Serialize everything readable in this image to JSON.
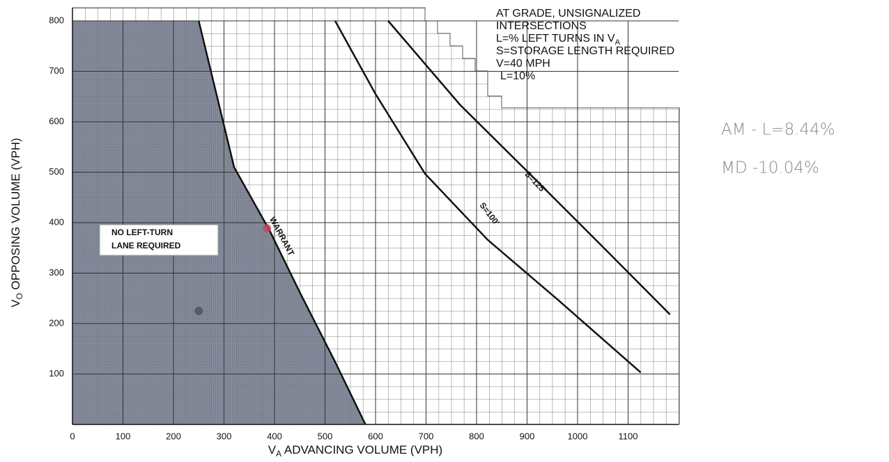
{
  "chart_data": {
    "type": "line",
    "info": [
      "AT GRADE, UNSIGNALIZED",
      "INTERSECTIONS",
      {
        "text": "L=% LEFT TURNS IN V",
        "sub": "A"
      },
      "S=STORAGE LENGTH REQUIRED",
      "V=40 MPH",
      "L=10%"
    ],
    "x_label": {
      "symbol": "V",
      "sub": "A",
      "text": " ADVANCING VOLUME (VPH)"
    },
    "y_label": {
      "symbol": "V",
      "sub": "O",
      "text": " OPPOSING VOLUME (VPH)"
    },
    "region_label": [
      "NO LEFT-TURN",
      "LANE REQUIRED"
    ],
    "notes": [
      "AM - L=8.44%",
      "MD -10.04%"
    ],
    "xlim": [
      0,
      1200
    ],
    "ylim": [
      0,
      800
    ],
    "xticks": [
      0,
      100,
      200,
      300,
      400,
      500,
      600,
      700,
      800,
      900,
      1000,
      1100
    ],
    "yticks": [
      100,
      200,
      300,
      400,
      500,
      600,
      700,
      800
    ],
    "grid": true,
    "series": [
      {
        "name": "WARRANT",
        "color": "#111111",
        "x": [
          250,
          320,
          390,
          450,
          520,
          580
        ],
        "values": [
          800,
          510,
          385,
          262,
          124,
          0
        ]
      },
      {
        "name": "S=100'",
        "color": "#111111",
        "x": [
          520,
          600,
          698,
          822,
          960,
          1125
        ],
        "values": [
          800,
          655,
          497,
          366,
          248,
          103
        ]
      },
      {
        "name": "S=125'",
        "color": "#111111",
        "x": [
          625,
          767,
          905,
          1043,
          1183
        ],
        "values": [
          800,
          634,
          497,
          359,
          218
        ]
      }
    ],
    "points": [
      {
        "x": 385,
        "y": 389,
        "color": "#c0455a"
      },
      {
        "x": 250,
        "y": 225,
        "color": "#4a5060"
      }
    ]
  }
}
